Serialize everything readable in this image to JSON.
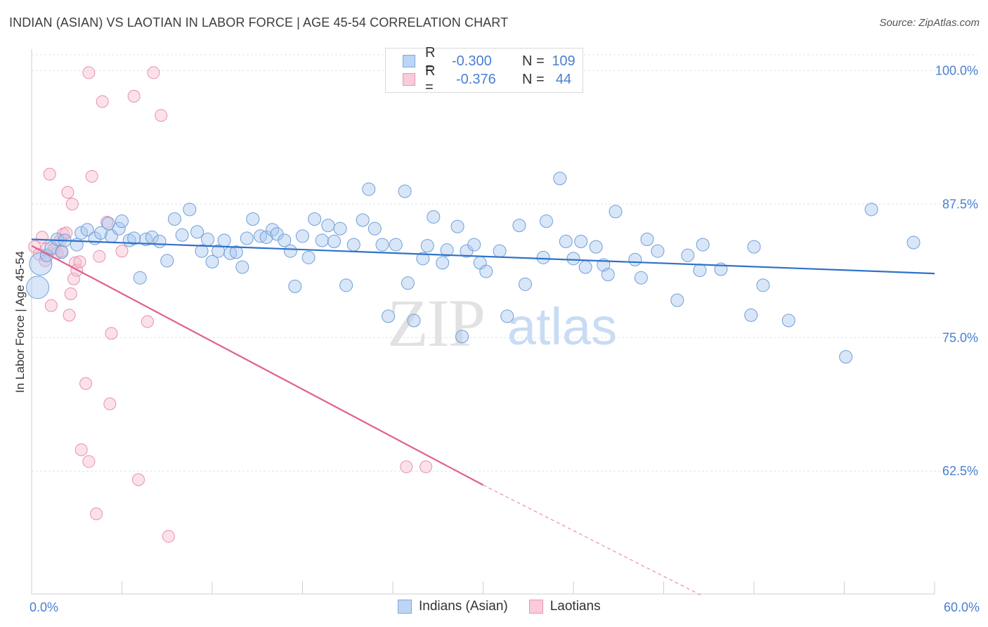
{
  "title": "INDIAN (ASIAN) VS LAOTIAN IN LABOR FORCE | AGE 45-54 CORRELATION CHART",
  "source": "Source: ZipAtlas.com",
  "watermark": {
    "zip": "ZIP",
    "atlas": "atlas"
  },
  "legend": {
    "rows": [
      {
        "r_label": "R =",
        "r_value": "-0.300",
        "n_label": "N =",
        "n_value": "109"
      },
      {
        "r_label": "R =",
        "r_value": "-0.376",
        "n_label": "N =",
        "n_value": "44"
      }
    ]
  },
  "bottom_legend": [
    "Indians (Asian)",
    "Laotians"
  ],
  "colors": {
    "blue_fill": "#a8c8f0",
    "blue_stroke": "#6f9fd8",
    "blue_line": "#2f72c8",
    "pink_fill": "#f6bfd0",
    "pink_stroke": "#e890ae",
    "pink_line": "#e0608e",
    "tick_text": "#4a7fd0",
    "grid": "#dde3ea"
  },
  "chart_data": {
    "type": "scatter",
    "title": "INDIAN (ASIAN) VS LAOTIAN IN LABOR FORCE | AGE 45-54 CORRELATION CHART",
    "xlabel": "",
    "ylabel": "In Labor Force | Age 45-54",
    "xlim": [
      0,
      60
    ],
    "ylim": [
      51,
      102
    ],
    "x_tick_labels": [
      "0.0%",
      "60.0%"
    ],
    "y_ticks": [
      62.5,
      75.0,
      87.5,
      100.0
    ],
    "y_tick_labels": [
      "62.5%",
      "75.0%",
      "87.5%",
      "100.0%"
    ],
    "grid": true,
    "series": [
      {
        "name": "Indians (Asian)",
        "color": "#a8c8f0",
        "trend": {
          "x": [
            0,
            60
          ],
          "y": [
            84.2,
            81.0
          ],
          "style": "solid"
        },
        "points": [
          [
            0.4,
            79.7
          ],
          [
            0.6,
            81.9
          ],
          [
            1.0,
            82.7
          ],
          [
            1.3,
            83.4
          ],
          [
            1.7,
            84.2
          ],
          [
            2.0,
            83.0
          ],
          [
            2.2,
            84.1
          ],
          [
            3.0,
            83.7
          ],
          [
            3.3,
            84.8
          ],
          [
            3.7,
            85.1
          ],
          [
            4.2,
            84.3
          ],
          [
            4.6,
            84.8
          ],
          [
            5.1,
            85.7
          ],
          [
            5.3,
            84.5
          ],
          [
            5.8,
            85.2
          ],
          [
            6.0,
            85.9
          ],
          [
            6.5,
            84.1
          ],
          [
            6.8,
            84.3
          ],
          [
            7.2,
            80.6
          ],
          [
            7.6,
            84.2
          ],
          [
            8.0,
            84.4
          ],
          [
            8.5,
            84.0
          ],
          [
            9.0,
            82.2
          ],
          [
            9.5,
            86.1
          ],
          [
            10.0,
            84.6
          ],
          [
            10.5,
            87.0
          ],
          [
            11.0,
            84.9
          ],
          [
            11.3,
            83.1
          ],
          [
            11.7,
            84.2
          ],
          [
            12.0,
            82.1
          ],
          [
            12.4,
            83.1
          ],
          [
            12.8,
            84.1
          ],
          [
            13.2,
            82.9
          ],
          [
            13.6,
            83.0
          ],
          [
            14.0,
            81.6
          ],
          [
            14.3,
            84.3
          ],
          [
            14.7,
            86.1
          ],
          [
            15.2,
            84.5
          ],
          [
            15.6,
            84.4
          ],
          [
            16.0,
            85.1
          ],
          [
            16.3,
            84.7
          ],
          [
            16.8,
            84.1
          ],
          [
            17.2,
            83.1
          ],
          [
            17.5,
            79.8
          ],
          [
            18.0,
            84.5
          ],
          [
            18.4,
            82.5
          ],
          [
            18.8,
            86.1
          ],
          [
            19.3,
            84.1
          ],
          [
            19.7,
            85.5
          ],
          [
            20.1,
            84.0
          ],
          [
            20.5,
            85.2
          ],
          [
            20.9,
            79.9
          ],
          [
            21.4,
            83.7
          ],
          [
            22.0,
            86.0
          ],
          [
            22.4,
            88.9
          ],
          [
            22.8,
            85.2
          ],
          [
            23.3,
            83.7
          ],
          [
            23.7,
            77.0
          ],
          [
            24.2,
            83.7
          ],
          [
            24.8,
            88.7
          ],
          [
            25.0,
            80.1
          ],
          [
            25.4,
            76.6
          ],
          [
            26.0,
            82.4
          ],
          [
            26.3,
            83.6
          ],
          [
            26.7,
            86.3
          ],
          [
            27.3,
            82.0
          ],
          [
            27.6,
            83.2
          ],
          [
            28.3,
            85.4
          ],
          [
            28.6,
            75.1
          ],
          [
            28.9,
            83.1
          ],
          [
            29.4,
            83.7
          ],
          [
            29.8,
            82.0
          ],
          [
            30.2,
            81.2
          ],
          [
            31.1,
            83.1
          ],
          [
            31.6,
            77.0
          ],
          [
            32.4,
            85.5
          ],
          [
            32.8,
            80.0
          ],
          [
            34.0,
            82.5
          ],
          [
            34.2,
            85.9
          ],
          [
            35.1,
            89.9
          ],
          [
            35.5,
            84.0
          ],
          [
            36.0,
            82.4
          ],
          [
            36.5,
            84.0
          ],
          [
            36.8,
            81.6
          ],
          [
            37.5,
            83.5
          ],
          [
            38.0,
            81.8
          ],
          [
            38.3,
            80.9
          ],
          [
            38.8,
            86.8
          ],
          [
            40.1,
            82.3
          ],
          [
            40.5,
            80.6
          ],
          [
            40.9,
            84.2
          ],
          [
            41.6,
            83.1
          ],
          [
            42.9,
            78.5
          ],
          [
            43.6,
            82.7
          ],
          [
            44.4,
            81.3
          ],
          [
            44.6,
            83.7
          ],
          [
            45.8,
            81.4
          ],
          [
            47.8,
            77.1
          ],
          [
            48.0,
            83.5
          ],
          [
            48.6,
            79.9
          ],
          [
            50.3,
            76.6
          ],
          [
            54.1,
            73.2
          ],
          [
            55.8,
            87.0
          ],
          [
            58.6,
            83.9
          ]
        ],
        "big_points": [
          [
            0.4,
            79.7
          ],
          [
            0.6,
            81.9
          ]
        ]
      },
      {
        "name": "Laotians",
        "color": "#f6bfd0",
        "trend": {
          "x": [
            0,
            30
          ],
          "y": [
            83.6,
            61.2
          ],
          "style": "solid",
          "dashed_to": {
            "x": 44.6,
            "y": 50.8
          }
        },
        "points": [
          [
            0.2,
            83.5
          ],
          [
            0.5,
            82.8
          ],
          [
            0.7,
            84.4
          ],
          [
            0.9,
            82.2
          ],
          [
            1.0,
            83.3
          ],
          [
            1.2,
            90.3
          ],
          [
            1.3,
            78.0
          ],
          [
            1.5,
            83.3
          ],
          [
            1.7,
            82.9
          ],
          [
            1.9,
            84.1
          ],
          [
            2.0,
            83.1
          ],
          [
            2.1,
            84.7
          ],
          [
            2.3,
            84.8
          ],
          [
            2.4,
            88.6
          ],
          [
            2.5,
            77.1
          ],
          [
            2.6,
            79.1
          ],
          [
            2.7,
            87.5
          ],
          [
            2.8,
            80.5
          ],
          [
            2.9,
            82.0
          ],
          [
            3.0,
            81.3
          ],
          [
            3.2,
            82.1
          ],
          [
            3.3,
            64.5
          ],
          [
            3.6,
            70.7
          ],
          [
            3.8,
            63.4
          ],
          [
            4.0,
            90.1
          ],
          [
            4.3,
            58.5
          ],
          [
            4.5,
            82.6
          ],
          [
            4.7,
            97.1
          ],
          [
            5.0,
            85.8
          ],
          [
            5.2,
            68.8
          ],
          [
            5.3,
            75.4
          ],
          [
            6.0,
            83.1
          ],
          [
            6.8,
            97.6
          ],
          [
            7.1,
            61.7
          ],
          [
            7.7,
            76.5
          ],
          [
            8.1,
            99.8
          ],
          [
            8.6,
            95.8
          ],
          [
            9.1,
            56.4
          ],
          [
            3.8,
            99.8
          ],
          [
            24.9,
            62.9
          ],
          [
            26.2,
            62.9
          ]
        ]
      }
    ]
  }
}
